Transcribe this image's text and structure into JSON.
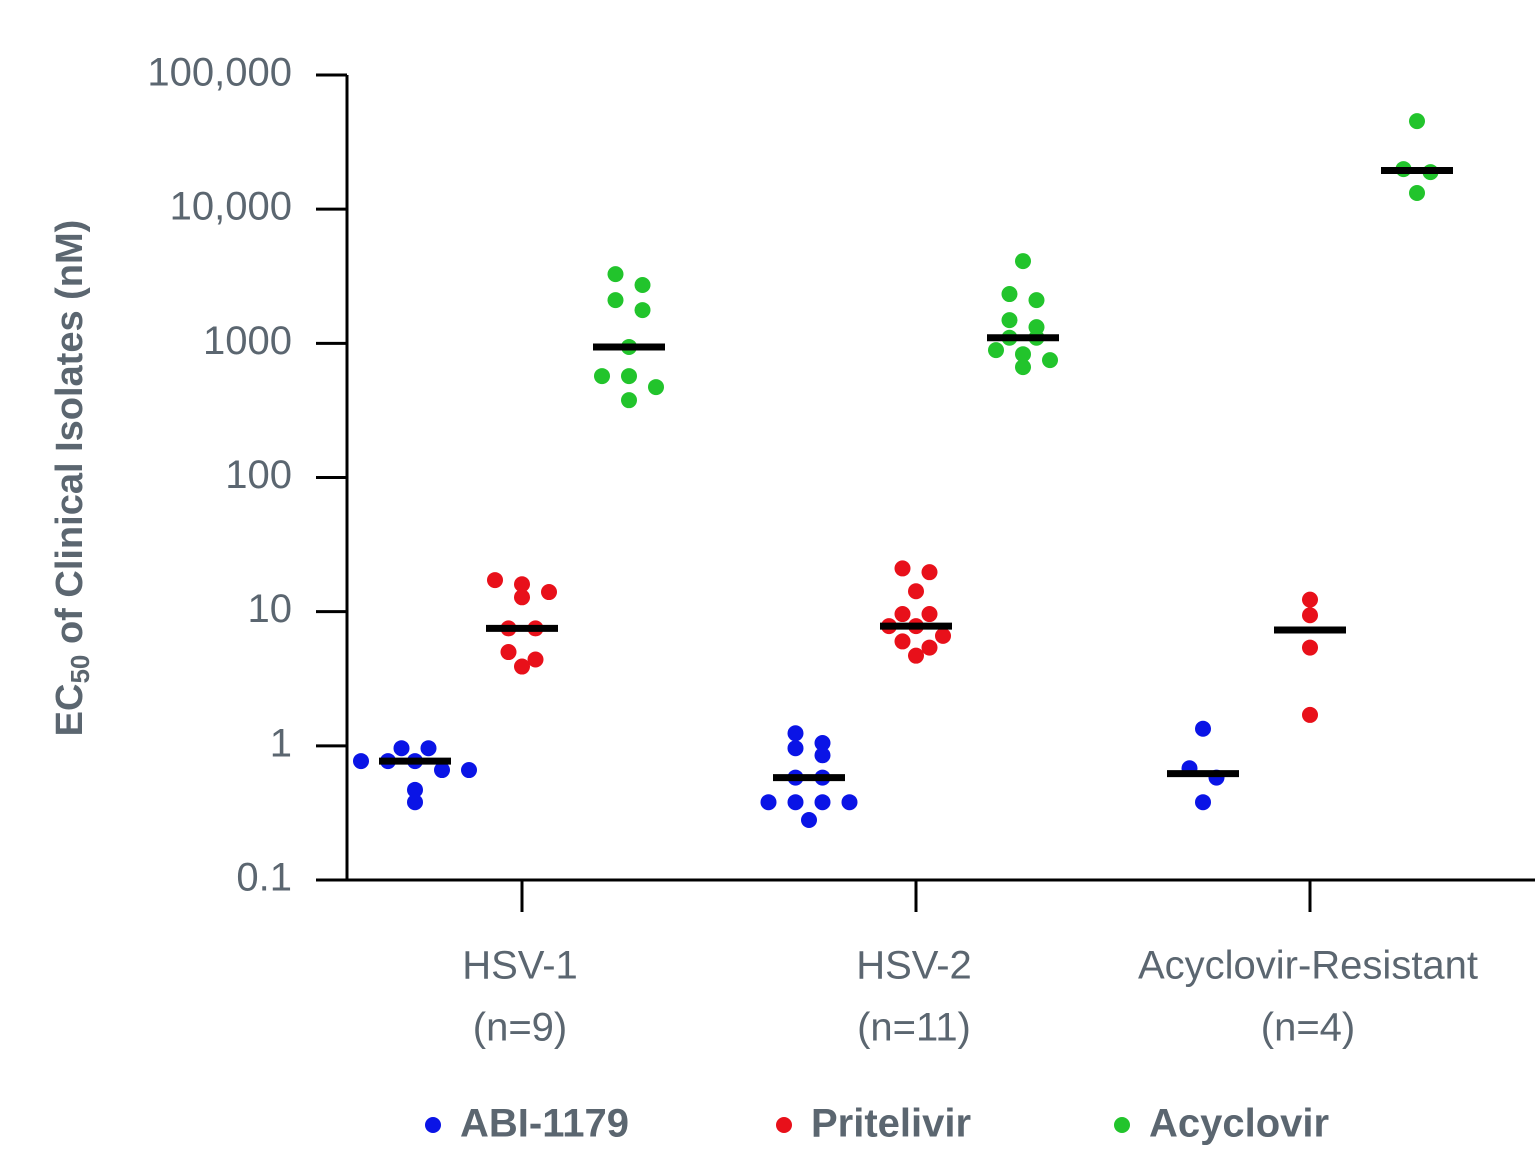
{
  "chart_data": {
    "type": "dot",
    "y_label": [
      "EC",
      "50",
      " of Clinical Isolates (nM)"
    ],
    "y_scale": "log",
    "ylim": [
      0.1,
      100000
    ],
    "yticks": [
      0.1,
      1,
      10,
      100,
      1000,
      {
        "value": 10000,
        "label": "10,000"
      },
      {
        "value": 100000,
        "label": "100,000"
      }
    ],
    "categories": [
      [
        "HSV-1",
        "(n=9)"
      ],
      [
        "HSV-2",
        "(n=11)"
      ],
      [
        "Acyclovir-Resistant",
        "(n=4)"
      ]
    ],
    "series": [
      {
        "name": "ABI-1179",
        "color": "#0a14e6",
        "values": [
          [
            0.77,
            0.77,
            0.96,
            0.77,
            0.96,
            0.66,
            0.66,
            0.47,
            0.38
          ],
          [
            1.24,
            1.05,
            0.96,
            0.85,
            0.58,
            0.58,
            0.38,
            0.38,
            0.38,
            0.38,
            0.28
          ],
          [
            1.34,
            0.68,
            0.58,
            0.38
          ]
        ],
        "medians": [
          0.77,
          0.58,
          0.62
        ]
      },
      {
        "name": "Pritelivir",
        "color": "#e8101a",
        "values": [
          [
            14,
            16,
            17.2,
            12.8,
            7.5,
            7.5,
            5.0,
            4.4,
            3.9
          ],
          [
            21,
            19.7,
            14.2,
            9.6,
            9.6,
            7.8,
            7.8,
            6.6,
            6.0,
            5.4,
            4.7
          ],
          [
            12.3,
            9.4,
            5.4,
            1.7
          ]
        ],
        "medians": [
          7.5,
          7.8,
          7.3
        ]
      },
      {
        "name": "Acyclovir",
        "color": "#22c42c",
        "values": [
          [
            3280,
            2720,
            2100,
            1770,
            940,
            570,
            570,
            472,
            377
          ],
          [
            4100,
            2330,
            2100,
            1490,
            1320,
            1100,
            1100,
            890,
            830,
            750,
            665
          ],
          [
            45300,
            19900,
            18900,
            13200
          ]
        ],
        "medians": [
          940,
          1100,
          19400
        ]
      }
    ]
  }
}
